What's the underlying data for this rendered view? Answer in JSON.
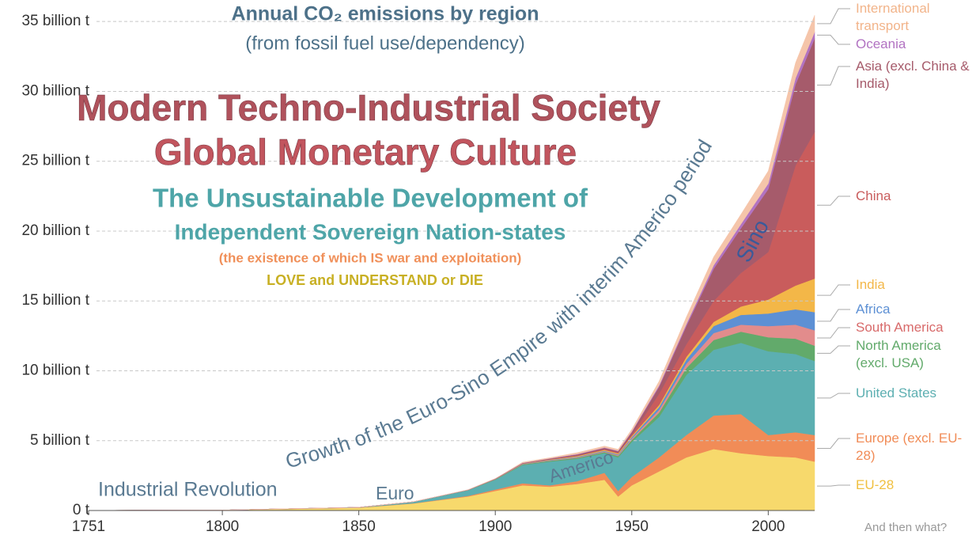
{
  "chart_data": {
    "type": "stacked_area",
    "title": "Annual CO₂ emissions by region",
    "subtitle": "(from fossil fuel use/dependency)",
    "annotations": [
      "Modern Techno-Industrial Society",
      "Global Monetary Culture",
      "The Unsustainable Development of",
      "Independent Sovereign Nation-states",
      "(the existence of which IS war and exploitation)",
      "LOVE and UNDERSTAND or DIE",
      "Growth of the Euro-Sino  Empire with  interim Americo period",
      "Industrial Revolution",
      "Euro",
      "Americo",
      "Sino",
      "And then what?"
    ],
    "x": [
      1751,
      1800,
      1850,
      1870,
      1890,
      1900,
      1910,
      1920,
      1930,
      1940,
      1945,
      1950,
      1960,
      1970,
      1980,
      1990,
      2000,
      2010,
      2017
    ],
    "xlim": [
      1751,
      2017
    ],
    "xticks": [
      1751,
      1800,
      1850,
      1900,
      1950,
      2000
    ],
    "ylim": [
      0,
      36.2
    ],
    "yticks": [
      {
        "value": 0,
        "label": "0 t"
      },
      {
        "value": 5,
        "label": "5 billion t"
      },
      {
        "value": 10,
        "label": "10 billion t"
      },
      {
        "value": 15,
        "label": "15 billion t"
      },
      {
        "value": 20,
        "label": "20 billion t"
      },
      {
        "value": 25,
        "label": "25 billion t"
      },
      {
        "value": 30,
        "label": "30 billion t"
      },
      {
        "value": 35,
        "label": "35 billion t"
      }
    ],
    "grid": true,
    "series": [
      {
        "name": "EU-28",
        "color": "#f7d96c",
        "values": [
          0.01,
          0.03,
          0.2,
          0.5,
          1.0,
          1.4,
          1.8,
          1.7,
          1.9,
          2.2,
          1.0,
          1.8,
          2.8,
          3.8,
          4.4,
          4.1,
          3.9,
          3.8,
          3.5
        ]
      },
      {
        "name": "Europe (excl. EU-28)",
        "color": "#f18c57",
        "values": [
          0,
          0,
          0.01,
          0.02,
          0.05,
          0.1,
          0.15,
          0.1,
          0.2,
          0.5,
          0.4,
          0.6,
          1.0,
          1.6,
          2.4,
          2.8,
          1.5,
          1.8,
          1.9
        ]
      },
      {
        "name": "United States",
        "color": "#5cafb1",
        "values": [
          0,
          0.002,
          0.02,
          0.1,
          0.4,
          0.7,
          1.3,
          1.7,
          1.6,
          1.4,
          2.4,
          2.5,
          2.9,
          4.3,
          4.7,
          5.1,
          6.0,
          5.6,
          5.3
        ]
      },
      {
        "name": "North America (excl. USA)",
        "color": "#62aa6b",
        "values": [
          0,
          0,
          0,
          0.005,
          0.01,
          0.03,
          0.05,
          0.06,
          0.07,
          0.08,
          0.1,
          0.15,
          0.3,
          0.5,
          0.7,
          0.8,
          1.0,
          1.1,
          1.1
        ]
      },
      {
        "name": "South America",
        "color": "#e28c8c",
        "values": [
          0,
          0,
          0,
          0,
          0.005,
          0.01,
          0.02,
          0.03,
          0.04,
          0.05,
          0.06,
          0.1,
          0.2,
          0.3,
          0.5,
          0.5,
          0.8,
          1.0,
          1.1
        ]
      },
      {
        "name": "Africa",
        "color": "#5d90d4",
        "values": [
          0,
          0,
          0,
          0,
          0.002,
          0.01,
          0.02,
          0.03,
          0.04,
          0.05,
          0.06,
          0.1,
          0.2,
          0.3,
          0.5,
          0.7,
          0.9,
          1.1,
          1.3
        ]
      },
      {
        "name": "India",
        "color": "#f3b748",
        "values": [
          0,
          0,
          0,
          0,
          0.005,
          0.01,
          0.02,
          0.03,
          0.05,
          0.06,
          0.07,
          0.08,
          0.15,
          0.2,
          0.3,
          0.6,
          1.0,
          1.7,
          2.4
        ]
      },
      {
        "name": "China",
        "color": "#c95c5c",
        "values": [
          0,
          0,
          0,
          0,
          0,
          0.005,
          0.01,
          0.02,
          0.03,
          0.04,
          0.05,
          0.08,
          0.8,
          0.9,
          1.5,
          2.4,
          3.4,
          8.6,
          10.5
        ]
      },
      {
        "name": "Asia (excl. China & India)",
        "color": "#a65b6b",
        "values": [
          0,
          0,
          0,
          0,
          0.005,
          0.01,
          0.02,
          0.04,
          0.08,
          0.1,
          0.1,
          0.2,
          0.5,
          1.3,
          2.3,
          3.2,
          4.5,
          5.8,
          6.7
        ]
      },
      {
        "name": "Oceania",
        "color": "#b273c2",
        "values": [
          0,
          0,
          0,
          0,
          0.005,
          0.01,
          0.02,
          0.02,
          0.03,
          0.03,
          0.04,
          0.05,
          0.1,
          0.15,
          0.25,
          0.3,
          0.4,
          0.45,
          0.45
        ]
      },
      {
        "name": "International transport",
        "color": "#f5c5aa",
        "values": [
          0,
          0,
          0,
          0,
          0,
          0,
          0.05,
          0.05,
          0.1,
          0.1,
          0.1,
          0.15,
          0.3,
          0.5,
          0.6,
          0.7,
          0.9,
          1.1,
          1.2
        ]
      }
    ]
  }
}
